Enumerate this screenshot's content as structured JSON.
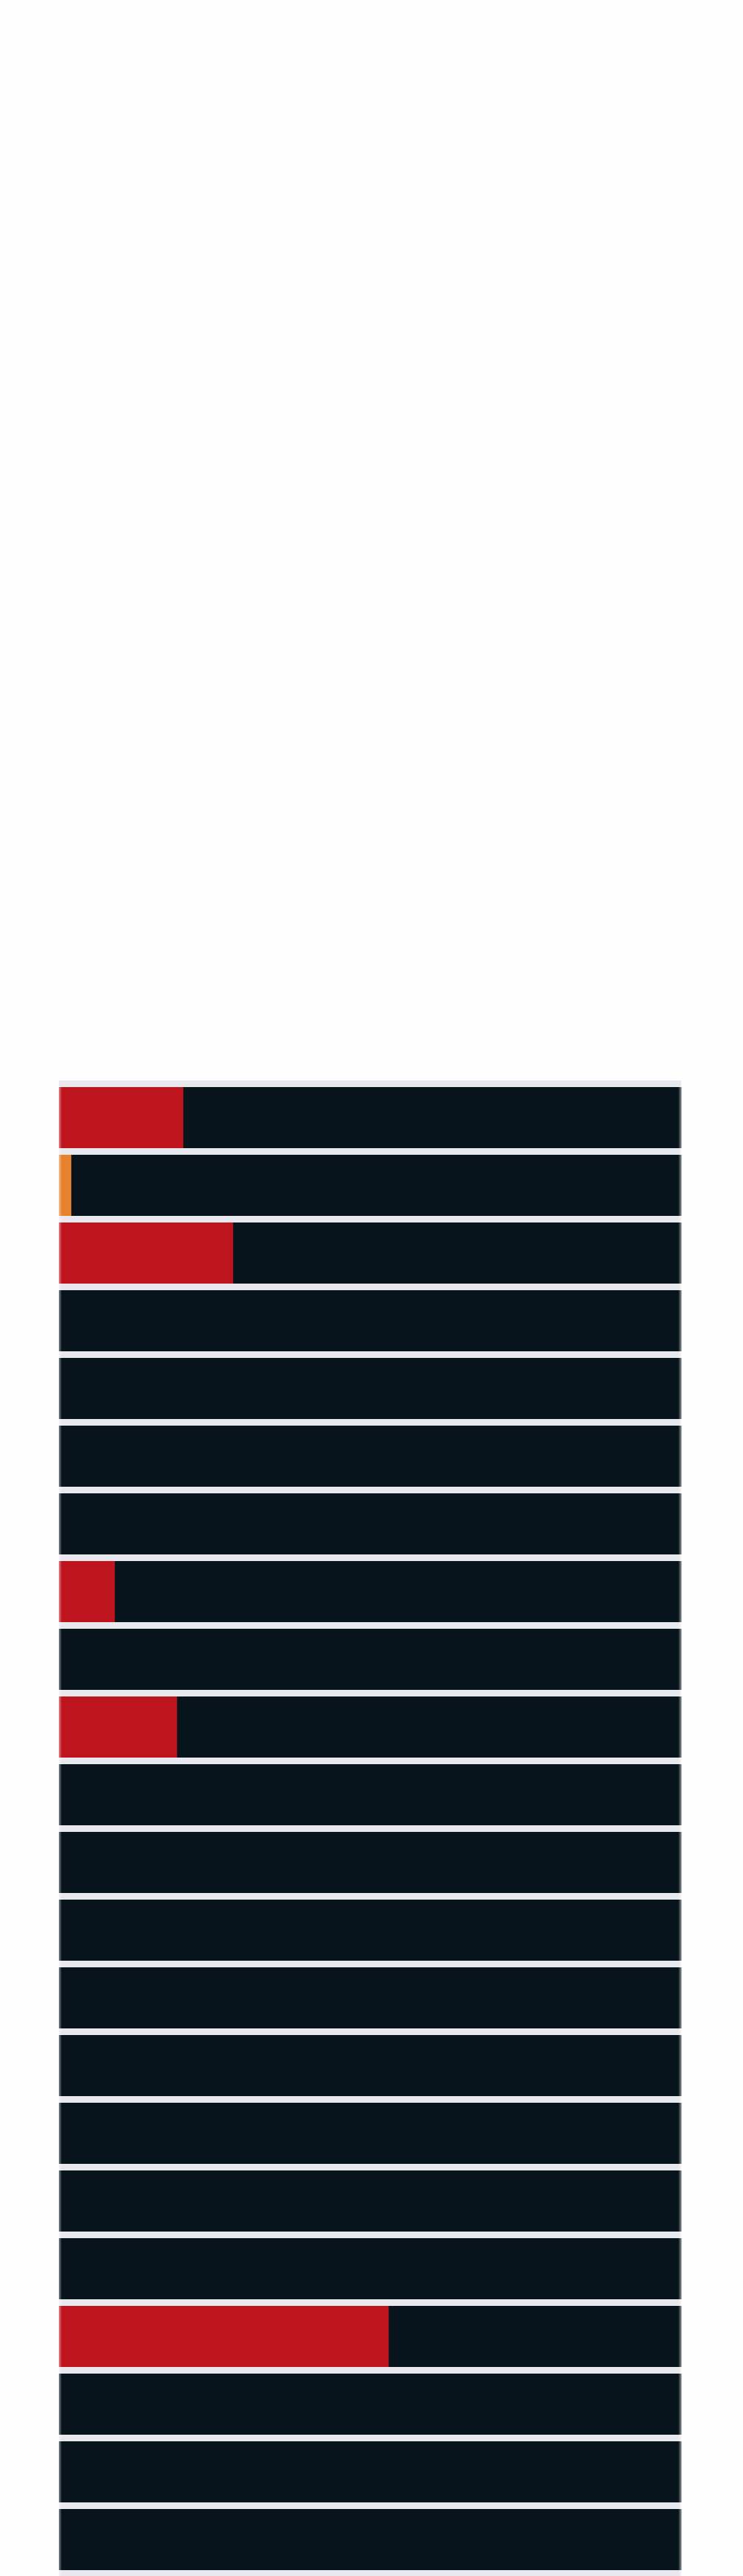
{
  "chart_data": {
    "type": "bar",
    "orientation": "horizontal",
    "stacked": true,
    "categories": [
      "",
      "",
      "",
      "",
      "",
      "",
      "",
      "",
      "",
      "",
      "",
      "",
      "",
      "",
      "",
      "",
      "",
      "",
      "",
      "",
      "",
      "",
      ""
    ],
    "values": [
      0.2,
      0.02,
      0.28,
      0,
      0,
      0,
      0,
      0.09,
      0,
      0.19,
      0,
      0,
      0,
      0,
      0,
      0,
      0,
      0,
      0.53,
      0,
      0,
      0,
      0
    ],
    "series": [
      {
        "values": [
          0.2,
          0,
          0.28,
          0,
          0,
          0,
          0,
          0.09,
          0,
          0.19,
          0,
          0,
          0,
          0,
          0,
          0,
          0,
          0,
          0.53,
          0,
          0,
          0,
          0
        ]
      },
      {
        "values": [
          0,
          0.02,
          0,
          0,
          0,
          0,
          0,
          0,
          0,
          0,
          0,
          0,
          0,
          0,
          0,
          0,
          0,
          0,
          0,
          0,
          0,
          0,
          0
        ]
      },
      {
        "values": [
          0.8,
          0.98,
          0.72,
          1,
          1,
          1,
          1,
          0.91,
          1,
          0.81,
          1,
          1,
          1,
          1,
          1,
          1,
          1,
          1,
          0.47,
          1,
          1,
          1,
          1
        ]
      }
    ],
    "xlim": [
      0,
      1
    ],
    "colors": {
      "series": [
        "#bd141e",
        "#e7812d",
        "#07141c"
      ],
      "separator": "#e8e8ef",
      "background": "#fefefe"
    },
    "grid": false,
    "legend": "none"
  }
}
